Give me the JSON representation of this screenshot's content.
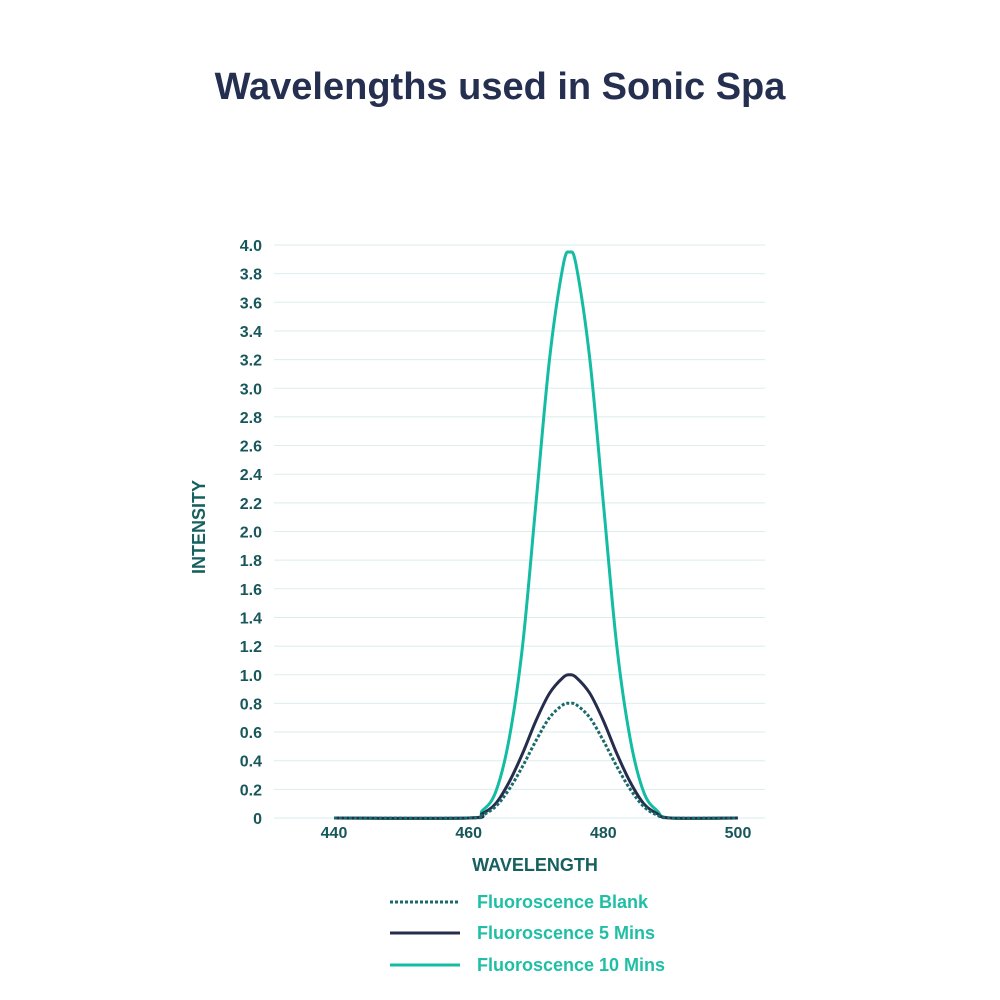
{
  "page": {
    "title": "Wavelengths used in Sonic Spa"
  },
  "colors": {
    "title": "#252f4f",
    "axis_text": "#17575a",
    "grid": "#dbeeee",
    "blank": "#1a6a6a",
    "five": "#262c4c",
    "ten": "#14bca3",
    "legend_text": "#1fbfa5"
  },
  "chart_data": {
    "type": "line",
    "title": "Wavelengths used in Sonic Spa",
    "xlabel": "WAVELENGTH",
    "ylabel": "INTENSITY",
    "xlim": [
      440,
      500
    ],
    "ylim": [
      0,
      4.0
    ],
    "x_ticks": [
      "440",
      "460",
      "480",
      "500"
    ],
    "y_ticks": [
      "0",
      "0.2",
      "0.4",
      "0.6",
      "0.8",
      "1.0",
      "1.2",
      "1.4",
      "1.6",
      "1.8",
      "2.0",
      "2.2",
      "2.4",
      "2.6",
      "2.8",
      "3.0",
      "3.2",
      "3.4",
      "3.6",
      "3.8",
      "4.0"
    ],
    "grid": true,
    "legend_position": "bottom",
    "x": [
      440,
      460,
      462,
      464,
      466,
      468,
      470,
      472,
      474,
      475,
      476,
      478,
      480,
      482,
      484,
      486,
      488,
      490,
      500
    ],
    "series": [
      {
        "name": "Fluoroscence Blank",
        "style": "dotted",
        "values": [
          0.0,
          0.0,
          0.02,
          0.08,
          0.2,
          0.36,
          0.54,
          0.7,
          0.79,
          0.8,
          0.79,
          0.7,
          0.54,
          0.36,
          0.2,
          0.08,
          0.02,
          0.0,
          0.0
        ]
      },
      {
        "name": "Fluoroscence 5 Mins",
        "style": "solid",
        "values": [
          0.0,
          0.0,
          0.03,
          0.1,
          0.25,
          0.45,
          0.68,
          0.87,
          0.98,
          1.0,
          0.98,
          0.87,
          0.68,
          0.45,
          0.25,
          0.1,
          0.03,
          0.0,
          0.0
        ]
      },
      {
        "name": "Fluoroscence 10 Mins",
        "style": "solid",
        "values": [
          0.0,
          0.0,
          0.05,
          0.18,
          0.55,
          1.2,
          2.2,
          3.2,
          3.85,
          3.95,
          3.85,
          3.2,
          2.2,
          1.2,
          0.55,
          0.18,
          0.05,
          0.0,
          0.0
        ]
      }
    ]
  }
}
